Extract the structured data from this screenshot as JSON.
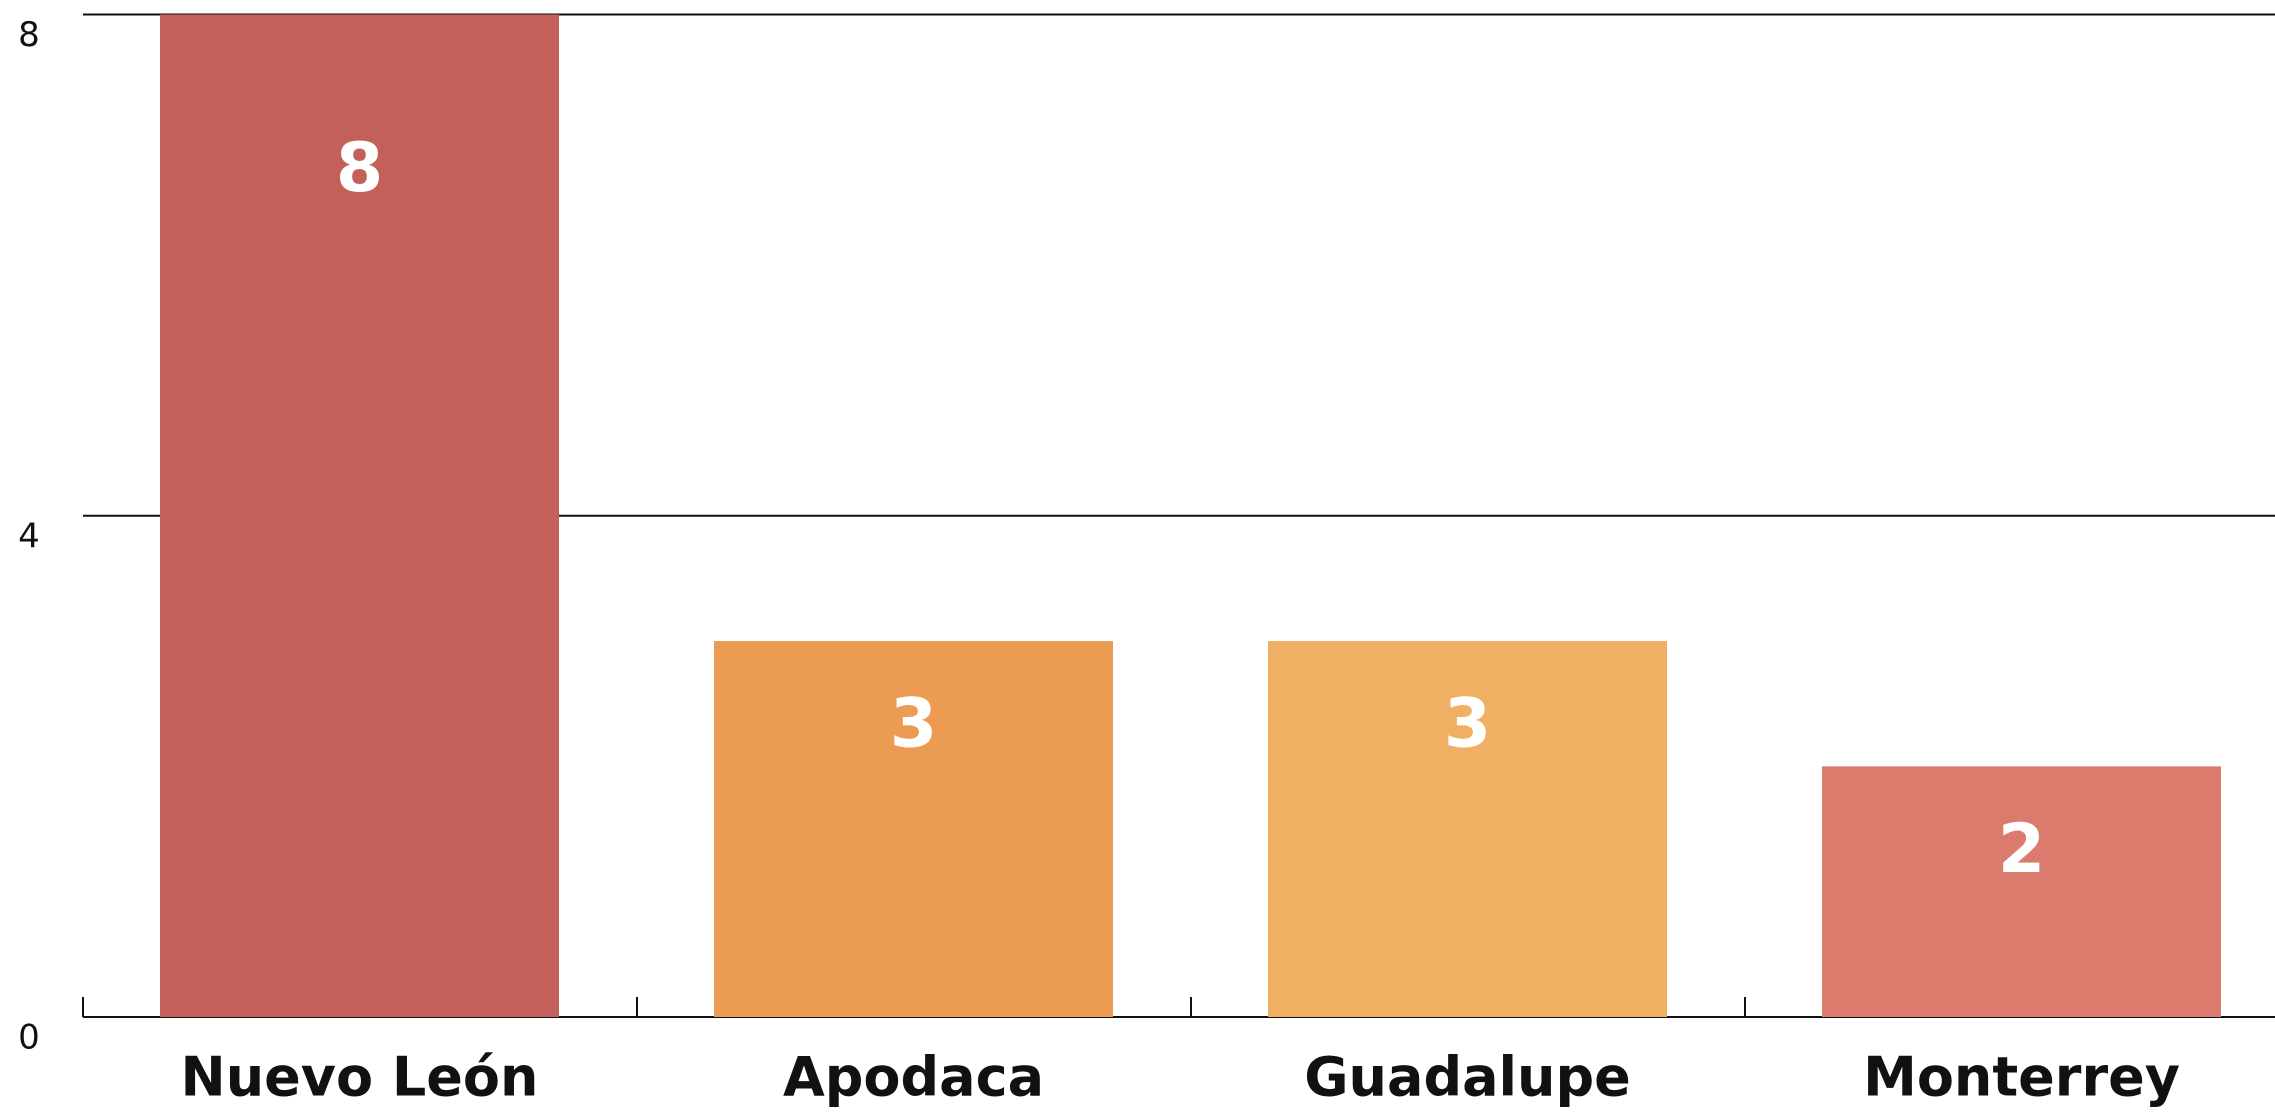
{
  "chart_data": {
    "type": "bar",
    "categories": [
      "Nuevo León",
      "Apodaca",
      "Guadalupe",
      "Monterrey"
    ],
    "values": [
      8,
      3,
      3,
      2
    ],
    "colors": [
      "#c4605a",
      "#ec9c52",
      "#f0b063",
      "#db7b6d"
    ],
    "ylim": [
      0,
      8
    ],
    "yticks": [
      0,
      4,
      8
    ],
    "grid": true
  }
}
